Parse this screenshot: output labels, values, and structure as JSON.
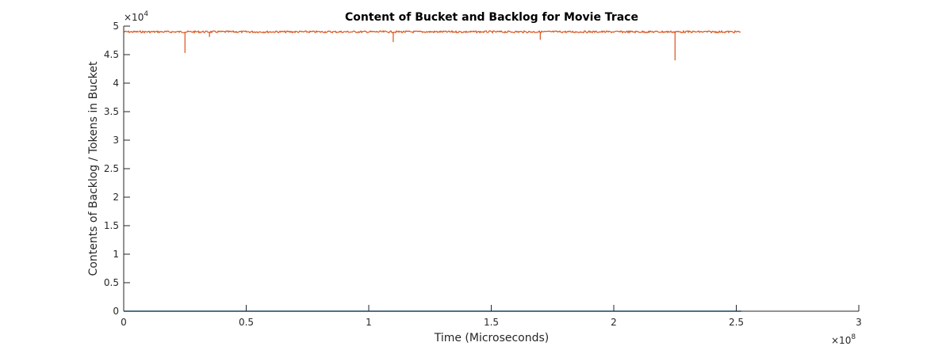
{
  "chart_data": {
    "type": "line",
    "title": "Content of Bucket and Backlog for Movie Trace",
    "xlabel": "Time (Microseconds)",
    "ylabel": "Contents of Backlog / Tokens in Bucket",
    "xlim": [
      0,
      3
    ],
    "ylim": [
      0,
      5
    ],
    "x_multiplier": {
      "base": "×10",
      "exponent": "8"
    },
    "y_multiplier": {
      "base": "×10",
      "exponent": "4"
    },
    "x_ticks": [
      {
        "value": 0,
        "label": "0"
      },
      {
        "value": 0.5,
        "label": "0.5"
      },
      {
        "value": 1,
        "label": "1"
      },
      {
        "value": 1.5,
        "label": "1.5"
      },
      {
        "value": 2,
        "label": "2"
      },
      {
        "value": 2.5,
        "label": "2.5"
      },
      {
        "value": 3,
        "label": "3"
      }
    ],
    "y_ticks": [
      {
        "value": 0,
        "label": "0"
      },
      {
        "value": 0.5,
        "label": "0.5"
      },
      {
        "value": 1,
        "label": "1"
      },
      {
        "value": 1.5,
        "label": "1.5"
      },
      {
        "value": 2,
        "label": "2"
      },
      {
        "value": 2.5,
        "label": "2.5"
      },
      {
        "value": 3,
        "label": "3"
      },
      {
        "value": 3.5,
        "label": "3.5"
      },
      {
        "value": 4,
        "label": "4"
      },
      {
        "value": 4.5,
        "label": "4.5"
      },
      {
        "value": 5,
        "label": "5"
      }
    ],
    "grid": false,
    "legend": "none",
    "series": [
      {
        "color": "#0072BD",
        "x": [
          0,
          2.52
        ],
        "y": [
          0,
          0
        ]
      },
      {
        "color": "#D95319",
        "baseline": 4.9,
        "x_end": 2.52,
        "dips": [
          {
            "x": 0.25,
            "y": 4.53
          },
          {
            "x": 0.35,
            "y": 4.81
          },
          {
            "x": 1.1,
            "y": 4.72
          },
          {
            "x": 1.7,
            "y": 4.76
          },
          {
            "x": 2.25,
            "y": 4.4
          }
        ]
      }
    ]
  }
}
